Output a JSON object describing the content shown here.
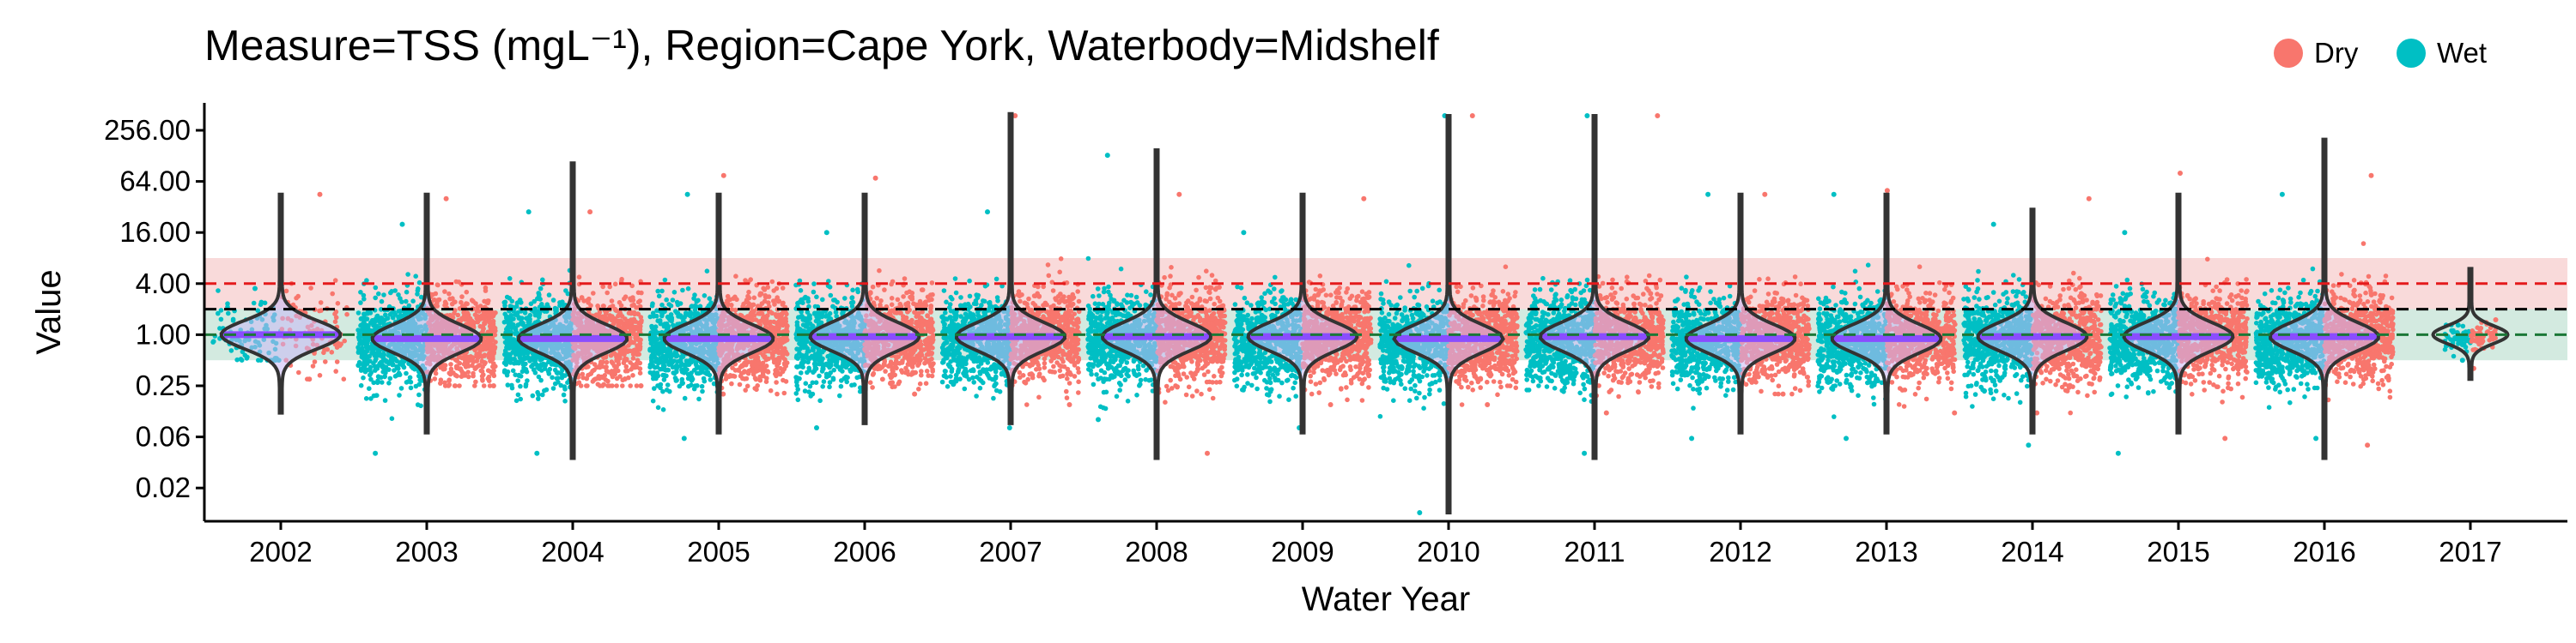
{
  "chart_data": {
    "type": "violin",
    "title": "Measure=TSS (mgL⁻¹), Region=Cape York, Waterbody=Midshelf",
    "xlabel": "Water Year",
    "ylabel": "Value",
    "y_scale": "log2",
    "ylim": [
      0.011,
      700
    ],
    "y_ticks": [
      "256.00",
      "64.00",
      "16.00",
      "4.00",
      "1.00",
      "0.25",
      "0.06",
      "0.02"
    ],
    "y_tick_values": [
      256,
      64,
      16,
      4,
      1,
      0.25,
      0.0625,
      0.015625
    ],
    "categories": [
      "2002",
      "2003",
      "2004",
      "2005",
      "2006",
      "2007",
      "2008",
      "2009",
      "2010",
      "2011",
      "2012",
      "2013",
      "2014",
      "2015",
      "2016",
      "2017"
    ],
    "reference_lines": [
      {
        "value": 4.0,
        "color": "#e41a1c",
        "style": "dashed"
      },
      {
        "value": 2.0,
        "color": "#000000",
        "style": "dashed"
      },
      {
        "value": 1.0,
        "color": "#1b7837",
        "style": "dashed"
      }
    ],
    "reference_bands": [
      {
        "from": 2.0,
        "to": 8.0,
        "color": "#f4b6b6"
      },
      {
        "from": 0.5,
        "to": 2.0,
        "color": "#a8d5c2"
      }
    ],
    "grid": false,
    "legend_position": "top-right",
    "series": [
      {
        "name": "Dry",
        "color": "#f8766d",
        "medians": [
          1.0,
          0.9,
          0.9,
          0.9,
          0.95,
          0.95,
          0.95,
          0.95,
          0.9,
          0.95,
          0.9,
          0.9,
          0.95,
          0.95,
          0.95,
          0.95
        ],
        "max": [
          45,
          40,
          28,
          75,
          70,
          380,
          45,
          40,
          380,
          380,
          45,
          50,
          40,
          80,
          75,
          1.5
        ],
        "min": [
          0.3,
          0.25,
          0.25,
          0.2,
          0.2,
          0.15,
          0.04,
          0.15,
          0.15,
          0.12,
          0.2,
          0.12,
          0.12,
          0.06,
          0.05,
          0.4
        ]
      },
      {
        "name": "Wet",
        "color": "#00bfc4",
        "medians": [
          1.0,
          0.8,
          0.8,
          0.8,
          0.85,
          0.85,
          0.85,
          0.85,
          0.8,
          0.85,
          0.8,
          0.8,
          0.85,
          0.85,
          0.85,
          0.9
        ],
        "max": [
          3.5,
          20,
          28,
          45,
          16,
          28,
          130,
          16,
          380,
          380,
          45,
          45,
          20,
          16,
          45,
          1.3
        ],
        "min": [
          0.5,
          0.04,
          0.04,
          0.06,
          0.08,
          0.08,
          0.1,
          0.08,
          0.008,
          0.04,
          0.06,
          0.06,
          0.05,
          0.04,
          0.06,
          0.5
        ]
      }
    ],
    "violins": {
      "color": "#333333",
      "max": [
        45,
        45,
        105,
        45,
        45,
        400,
        150,
        45,
        380,
        380,
        45,
        45,
        30,
        45,
        200,
        6
      ],
      "min": [
        0.12,
        0.07,
        0.035,
        0.07,
        0.09,
        0.09,
        0.035,
        0.07,
        0.008,
        0.035,
        0.07,
        0.07,
        0.07,
        0.07,
        0.035,
        0.3
      ],
      "medians": [
        1.0,
        0.9,
        0.9,
        0.9,
        0.95,
        0.95,
        0.95,
        0.95,
        0.9,
        0.95,
        0.9,
        0.9,
        0.95,
        0.95,
        0.95,
        1.0
      ]
    }
  }
}
